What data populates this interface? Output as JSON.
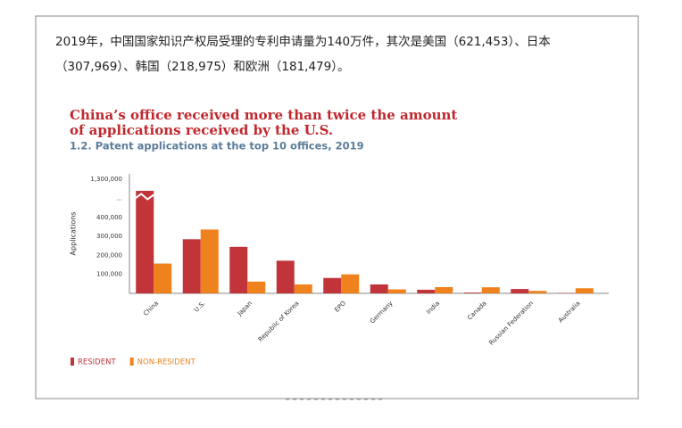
{
  "paragraph": [
    "2019年，中国国家知识产权局受理的专利申请量为140万件，其次是美国（621,453）、日本",
    "（307,969）、韩国（218,975）和欧洲（181,479）。"
  ],
  "chart_data": {
    "type": "bar",
    "title": [
      "China’s office received more than twice the amount",
      "of applications received by the U.S."
    ],
    "subtitle": "1.2. Patent applications at the top 10 offices, 2019",
    "y_label": "Applications",
    "categories": [
      "China",
      "U.S.",
      "Japan",
      "Republic of Korea",
      "EPO",
      "Germany",
      "India",
      "Canada",
      "Russian Federation",
      "Australia"
    ],
    "series": [
      {
        "name": "RESIDENT",
        "color": "#c0343a",
        "values": [
          1240000,
          285000,
          245000,
          172000,
          81000,
          47000,
          19000,
          4000,
          23000,
          2000
        ]
      },
      {
        "name": "NON-RESIDENT",
        "color": "#f0821e",
        "values": [
          157000,
          336000,
          62000,
          47000,
          100000,
          21000,
          33000,
          32000,
          13000,
          27000
        ]
      }
    ],
    "ylim": [
      0,
      1350000
    ],
    "axis_break": [
      500000,
      1200000
    ],
    "yticks": [
      {
        "value": 100000,
        "label": "100,000"
      },
      {
        "value": 200000,
        "label": "200,000"
      },
      {
        "value": 300000,
        "label": "300,000"
      },
      {
        "value": 400000,
        "label": "400,000"
      },
      {
        "value": 500000,
        "label": "..."
      },
      {
        "value": 1300000,
        "label": "1,300,000"
      }
    ],
    "legend": "bottom-left"
  }
}
